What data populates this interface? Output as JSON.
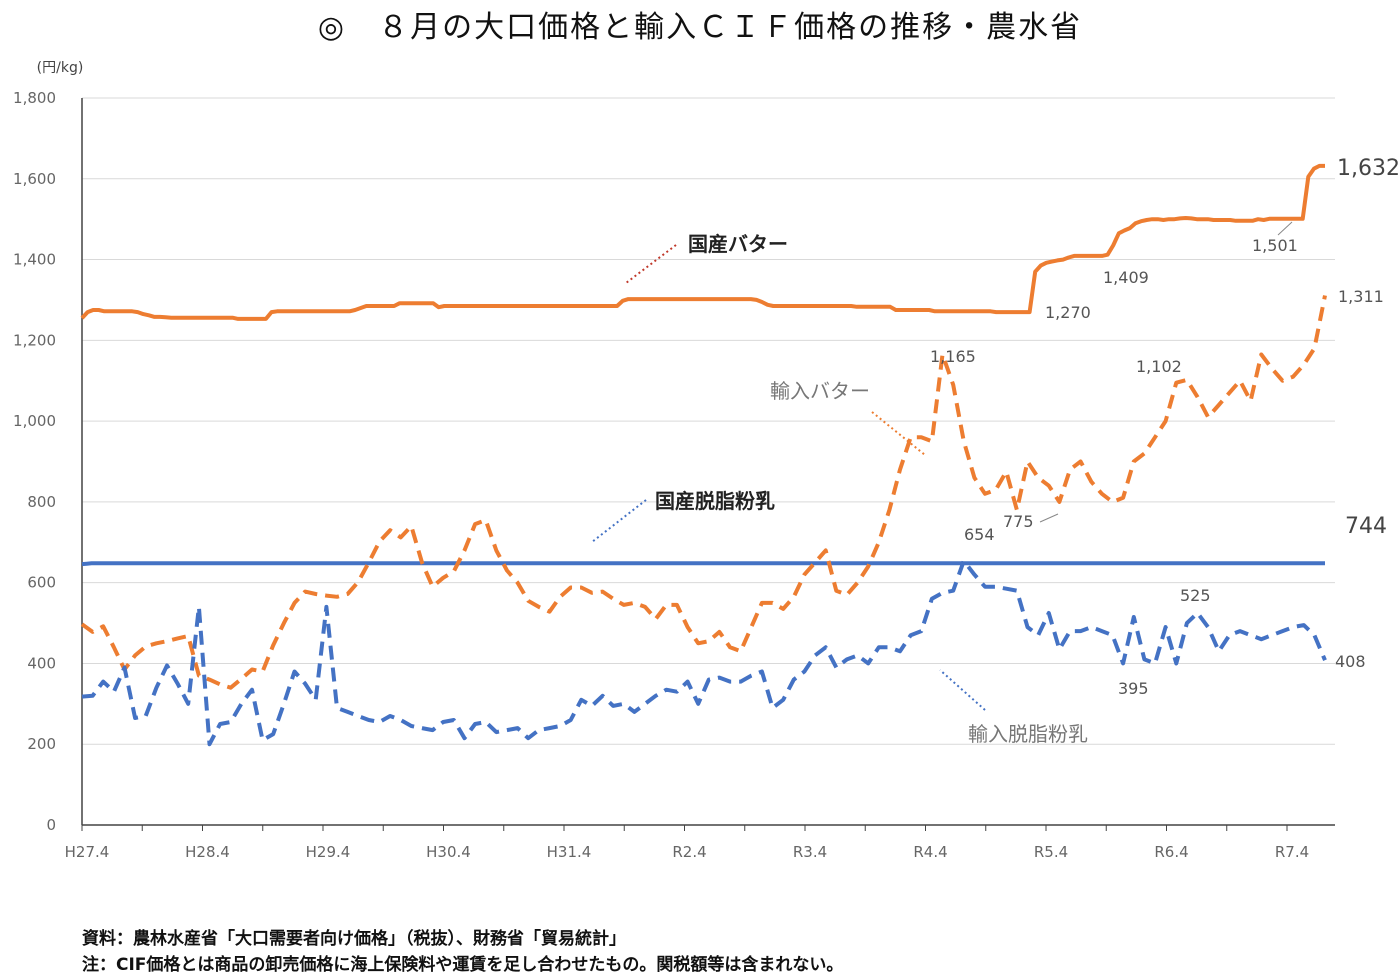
{
  "title": "◎　８月の大口価格と輸入ＣＩＦ価格の推移・農水省",
  "chart_data": {
    "type": "line",
    "ylabel": "(円/kg)",
    "ylim": [
      0,
      1800
    ],
    "yticks": [
      "0",
      "200",
      "400",
      "600",
      "800",
      "1,000",
      "1,200",
      "1,400",
      "1,600",
      "1,800"
    ],
    "xticks": [
      "H27.4",
      "H28.4",
      "H29.4",
      "H30.4",
      "H31.4",
      "R2.4",
      "R3.4",
      "R4.4",
      "R5.4",
      "R6.4",
      "R7.4"
    ],
    "grid": true,
    "series": [
      {
        "name": "国産バター",
        "color": "#ED7D31",
        "style": "solid",
        "values": [
          1255,
          1270,
          1275,
          1275,
          1272,
          1272,
          1272,
          1272,
          1272,
          1272,
          1270,
          1265,
          1262,
          1258,
          1258,
          1257,
          1256,
          1256,
          1256,
          1256,
          1256,
          1256,
          1256,
          1256,
          1256,
          1256,
          1256,
          1256,
          1253,
          1253,
          1253,
          1253,
          1253,
          1253,
          1270,
          1272,
          1272,
          1272,
          1272,
          1272,
          1272,
          1272,
          1272,
          1272,
          1272,
          1272,
          1272,
          1272,
          1272,
          1275,
          1280,
          1285,
          1285,
          1285,
          1285,
          1285,
          1285,
          1292,
          1292,
          1292,
          1292,
          1292,
          1292,
          1292,
          1282,
          1285,
          1285,
          1285,
          1285,
          1285,
          1285,
          1285,
          1285,
          1285,
          1285,
          1285,
          1285,
          1285,
          1285,
          1285,
          1285,
          1285,
          1285,
          1285,
          1285,
          1285,
          1285,
          1285,
          1285,
          1285,
          1285,
          1285,
          1285,
          1285,
          1285,
          1285,
          1285,
          1298,
          1302,
          1302,
          1302,
          1302,
          1302,
          1302,
          1302,
          1302,
          1302,
          1302,
          1302,
          1302,
          1302,
          1302,
          1302,
          1302,
          1302,
          1302,
          1302,
          1302,
          1302,
          1302,
          1302,
          1300,
          1295,
          1288,
          1285,
          1285,
          1285,
          1285,
          1285,
          1285,
          1285,
          1285,
          1285,
          1285,
          1285,
          1285,
          1285,
          1285,
          1285,
          1283,
          1283,
          1283,
          1283,
          1283,
          1283,
          1283,
          1275,
          1275,
          1275,
          1275,
          1275,
          1275,
          1275,
          1272,
          1272,
          1272,
          1272,
          1272,
          1272,
          1272,
          1272,
          1272,
          1272,
          1272,
          1270,
          1270,
          1270,
          1270,
          1270,
          1270,
          1270,
          1370,
          1385,
          1392,
          1395,
          1398,
          1400,
          1405,
          1409,
          1409,
          1409,
          1409,
          1409,
          1409,
          1412,
          1435,
          1465,
          1472,
          1478,
          1490,
          1495,
          1498,
          1500,
          1500,
          1498,
          1500,
          1500,
          1502,
          1503,
          1502,
          1500,
          1500,
          1500,
          1498,
          1498,
          1498,
          1498,
          1496,
          1496,
          1496,
          1496,
          1500,
          1498,
          1501,
          1501,
          1501,
          1501,
          1501,
          1501,
          1501,
          1605,
          1625,
          1632,
          1632
        ]
      },
      {
        "name": "国産脱脂粉乳",
        "color": "#4472C4",
        "style": "solid",
        "values": [
          646,
          647,
          648,
          648,
          648,
          648,
          648,
          648,
          648,
          648,
          648,
          648,
          648,
          648,
          648,
          648,
          648,
          648,
          648,
          648,
          648,
          648,
          648,
          648,
          648,
          648,
          648,
          648,
          648,
          648,
          648,
          648,
          648,
          648,
          648,
          648,
          648,
          648,
          648,
          648,
          648,
          648,
          648,
          648,
          648,
          648,
          648,
          648,
          648,
          648,
          648,
          648,
          648,
          648,
          648,
          648,
          648,
          648,
          648,
          648,
          648,
          648,
          648,
          648,
          648,
          648,
          648,
          648,
          648,
          648,
          648,
          648,
          648,
          648,
          648,
          648,
          648,
          648,
          648,
          648,
          648,
          648,
          648,
          648,
          648,
          648,
          648,
          648,
          648,
          648,
          648,
          648,
          648,
          648,
          648,
          648,
          648,
          648,
          648,
          648,
          648,
          648,
          648,
          648,
          648,
          648,
          648,
          648,
          648,
          648,
          648,
          648,
          648,
          648,
          648,
          648,
          648,
          648,
          648,
          648,
          648,
          648,
          648,
          648,
          648,
          648,
          648,
          648,
          648,
          648,
          648,
          648,
          648,
          648,
          648,
          648,
          648,
          648,
          648,
          648,
          648,
          648,
          648,
          648,
          648,
          648,
          648,
          648,
          648,
          648,
          648,
          648,
          648,
          648,
          648,
          648,
          648,
          648,
          648,
          648,
          648,
          648,
          648,
          648,
          648,
          648,
          648,
          648,
          648,
          648,
          648,
          648,
          648,
          648,
          648,
          648,
          648,
          648,
          648,
          648,
          648,
          648,
          648,
          648,
          648,
          648,
          648,
          648,
          648,
          648,
          648,
          648,
          648,
          648,
          648,
          648,
          648,
          648,
          648,
          648,
          648,
          648,
          648,
          648,
          648,
          648,
          648,
          648,
          648,
          648,
          648,
          648,
          648,
          648,
          648,
          648,
          648,
          648,
          648,
          648,
          648,
          648,
          648,
          648,
          648,
          648,
          648,
          648,
          648,
          648,
          648,
          648,
          648,
          648,
          648,
          648,
          648,
          648,
          648,
          648,
          648,
          648,
          648,
          648,
          648,
          648,
          648,
          648,
          648,
          648,
          648,
          648,
          648,
          648,
          648,
          648,
          648,
          648,
          648,
          648,
          648,
          648
        ]
      },
      {
        "name": "輸入バター",
        "color": "#ED7D31",
        "style": "dashed",
        "values": [
          497,
          478,
          492,
          440,
          385,
          420,
          442,
          450,
          455,
          462,
          468,
          370,
          360,
          348,
          340,
          362,
          385,
          380,
          445,
          500,
          550,
          578,
          572,
          568,
          565,
          572,
          602,
          650,
          702,
          730,
          712,
          740,
          650,
          590,
          612,
          628,
          680,
          745,
          755,
          680,
          630,
          600,
          555,
          540,
          528,
          565,
          588,
          588,
          575,
          578,
          560,
          545,
          550,
          540,
          510,
          545,
          545,
          490,
          450,
          455,
          478,
          440,
          430,
          490,
          550,
          550,
          535,
          565,
          620,
          650,
          680,
          580,
          570,
          600,
          640,
          700,
          780,
          880,
          960,
          960,
          950,
          1165,
          1090,
          950,
          860,
          820,
          830,
          875,
          780,
          900,
          860,
          840,
          800,
          880,
          900,
          850,
          820,
          800,
          810,
          900,
          920,
          960,
          1000,
          1095,
          1102,
          1060,
          1010,
          1040,
          1070,
          1100,
          1050,
          1165,
          1130,
          1100,
          1110,
          1140,
          1180,
          1311
        ]
      },
      {
        "name": "輸入脱脂粉乳",
        "color": "#4472C4",
        "style": "dashed",
        "values": [
          318,
          320,
          355,
          330,
          390,
          265,
          270,
          340,
          395,
          350,
          300,
          540,
          200,
          250,
          255,
          300,
          335,
          210,
          225,
          300,
          380,
          350,
          310,
          540,
          290,
          280,
          270,
          260,
          255,
          270,
          260,
          245,
          240,
          235,
          255,
          260,
          215,
          250,
          255,
          230,
          235,
          240,
          215,
          235,
          240,
          245,
          260,
          310,
          295,
          320,
          295,
          300,
          280,
          300,
          320,
          335,
          330,
          355,
          300,
          360,
          365,
          355,
          355,
          370,
          380,
          290,
          310,
          360,
          380,
          420,
          440,
          390,
          410,
          420,
          400,
          440,
          440,
          430,
          470,
          480,
          560,
          575,
          580,
          654,
          620,
          590,
          590,
          585,
          580,
          490,
          470,
          525,
          435,
          480,
          480,
          490,
          480,
          470,
          400,
          515,
          410,
          400,
          490,
          400,
          500,
          525,
          490,
          430,
          470,
          480,
          470,
          460,
          470,
          480,
          490,
          495,
          470,
          408
        ]
      }
    ],
    "annotations": [
      "1,632",
      "1,501",
      "1,409",
      "1,270",
      "1,311",
      "1,165",
      "1,102",
      "775",
      "744",
      "654",
      "525",
      "395",
      "408"
    ]
  },
  "source_note": "資料：農林水産省「大口需要者向け価格」（税抜）、財務省「貿易統計」",
  "cif_note": "注：CIF価格とは商品の卸売価格に海上保険料や運賃を足し合わせたもの。関税額等は含まれない。"
}
